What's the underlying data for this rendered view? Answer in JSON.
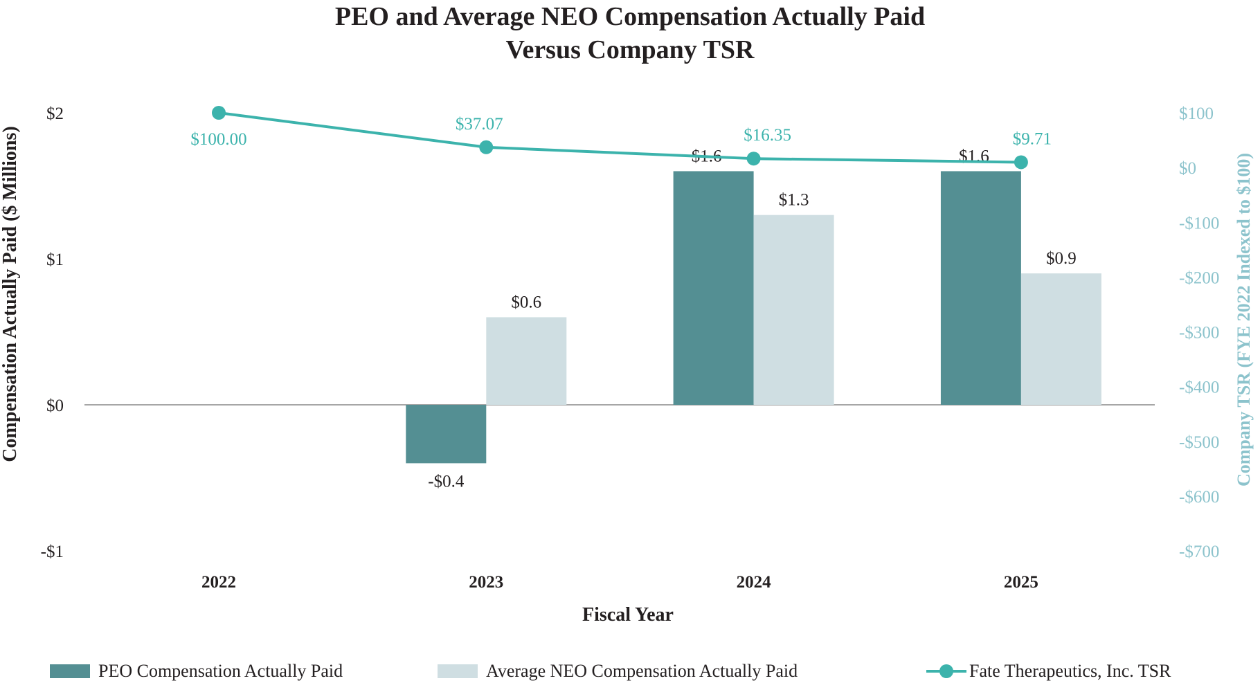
{
  "chart_data": {
    "type": "bar",
    "title_lines": [
      "PEO and Average NEO Compensation Actually Paid",
      "Versus Company TSR"
    ],
    "xlabel": "Fiscal Year",
    "ylabel": "Compensation Actually Paid ($ Millions)",
    "ylabel_right": "Company TSR (FYE 2022 Indexed to $100)",
    "categories": [
      "2022",
      "2023",
      "2024",
      "2025"
    ],
    "ylim": [
      -1,
      2
    ],
    "yticks": [
      2,
      1,
      0,
      -1
    ],
    "ytick_labels": [
      "$2",
      "$1",
      "$0",
      "-$1"
    ],
    "ylim_right": [
      -700,
      100
    ],
    "yticks_right": [
      100,
      0,
      -100,
      -200,
      -300,
      -400,
      -500,
      -600,
      -700
    ],
    "ytick_labels_right": [
      "$100",
      "$0",
      "-$100",
      "-$200",
      "-$300",
      "-$400",
      "-$500",
      "-$600",
      "-$700"
    ],
    "grid": false,
    "legend_position": "bottom",
    "series": [
      {
        "name": "PEO Compensation Actually Paid",
        "type": "bar",
        "axis": "left",
        "color": "#548f93",
        "values": [
          null,
          -0.4,
          1.6,
          1.6
        ],
        "labels": [
          "",
          "-$0.4",
          "$1.6",
          "$1.6"
        ]
      },
      {
        "name": "Average NEO Compensation Actually Paid",
        "type": "bar",
        "axis": "left",
        "color": "#cfdee2",
        "values": [
          null,
          0.6,
          1.3,
          0.9
        ],
        "labels": [
          "",
          "$0.6",
          "$1.3",
          "$0.9"
        ]
      },
      {
        "name": "Fate Therapeutics, Inc. TSR",
        "type": "line",
        "axis": "right",
        "color": "#3cb3ac",
        "values": [
          100.0,
          37.07,
          16.35,
          9.71
        ],
        "labels": [
          "$100.00",
          "$37.07",
          "$16.35",
          "$9.71"
        ]
      }
    ]
  }
}
